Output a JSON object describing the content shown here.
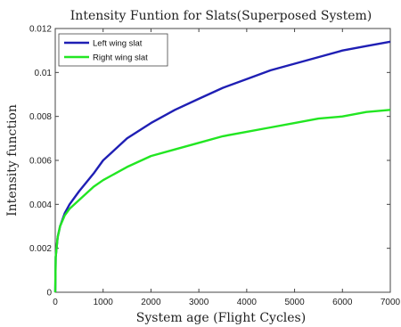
{
  "chart_data": {
    "type": "line",
    "title": "Intensity Funtion for Slats(Superposed System)",
    "xlabel": "System age (Flight Cycles)",
    "ylabel": "Intensity function",
    "xlim": [
      0,
      7000
    ],
    "ylim": [
      0,
      0.012
    ],
    "x_ticks": [
      "0",
      "1000",
      "2000",
      "3000",
      "4000",
      "5000",
      "6000",
      "7000"
    ],
    "y_ticks": [
      "0",
      "0.002",
      "0.004",
      "0.006",
      "0.008",
      "0.01",
      "0.012"
    ],
    "grid": false,
    "legend_position": "top-left",
    "series": [
      {
        "name": "Left wing slat",
        "color": "#1f1fb4",
        "x": [
          10,
          50,
          100,
          200,
          300,
          500,
          800,
          1000,
          1500,
          2000,
          2500,
          3000,
          3500,
          4000,
          4500,
          5000,
          5500,
          6000,
          6500,
          7000
        ],
        "y": [
          0.0016,
          0.0025,
          0.003,
          0.0036,
          0.004,
          0.0046,
          0.0054,
          0.006,
          0.007,
          0.0077,
          0.0083,
          0.0088,
          0.0093,
          0.0097,
          0.0101,
          0.0104,
          0.0107,
          0.011,
          0.0112,
          0.0114
        ]
      },
      {
        "name": "Right wing slat",
        "color": "#22e622",
        "x": [
          10,
          50,
          100,
          200,
          300,
          500,
          800,
          1000,
          1500,
          2000,
          2500,
          3000,
          3500,
          4000,
          4500,
          5000,
          5500,
          6000,
          6500,
          7000
        ],
        "y": [
          0.0016,
          0.0025,
          0.003,
          0.0035,
          0.0038,
          0.0042,
          0.0048,
          0.0051,
          0.0057,
          0.0062,
          0.0065,
          0.0068,
          0.0071,
          0.0073,
          0.0075,
          0.0077,
          0.0079,
          0.008,
          0.0082,
          0.0083
        ]
      }
    ]
  }
}
